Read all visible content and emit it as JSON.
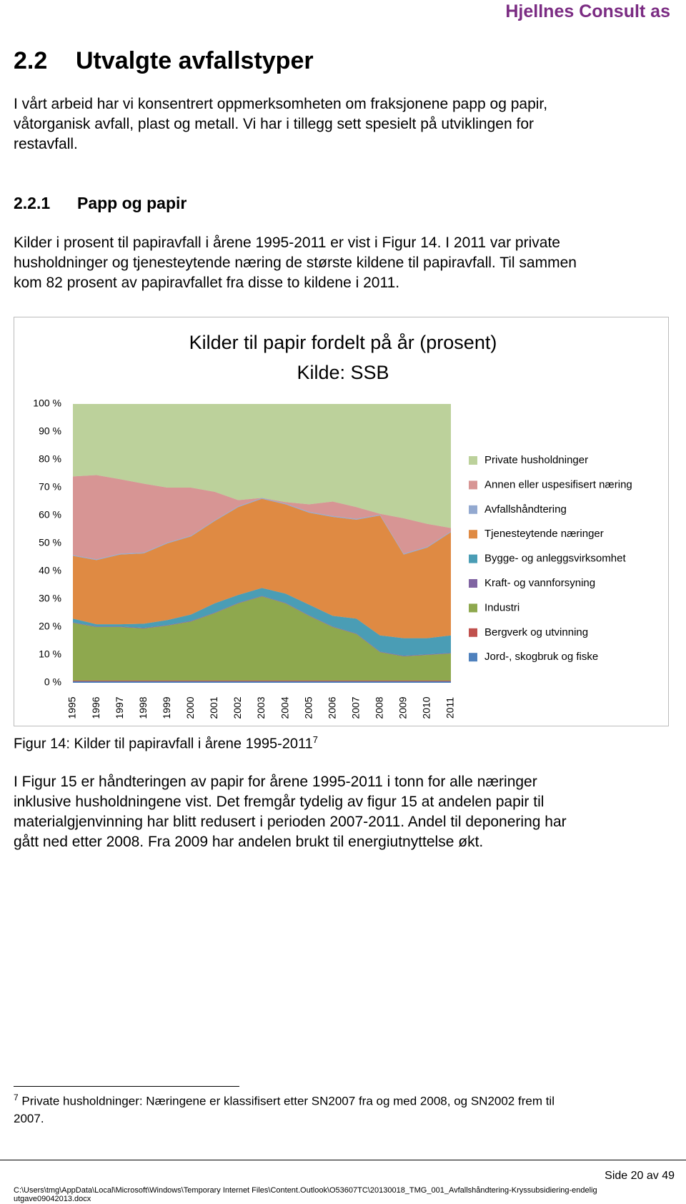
{
  "header": {
    "company": "Hjellnes Consult as"
  },
  "section": {
    "number": "2.2",
    "title": "Utvalgte avfallstyper",
    "paragraph": [
      "I vårt arbeid har vi konsentrert oppmerksomheten om fraksjonene papp og papir,",
      "våtorganisk avfall, plast og metall. Vi har i tillegg sett spesielt på utviklingen for",
      "restavfall."
    ]
  },
  "subsection": {
    "number": "2.2.1",
    "title": "Papp og papir",
    "paragraph": [
      "Kilder i prosent til papiravfall i årene 1995-2011 er vist i Figur 14. I 2011 var private",
      "husholdninger og tjenesteytende næring de største kildene til papiravfall. Til sammen",
      "kom 82 prosent av papiravfallet fra disse to kildene i 2011."
    ]
  },
  "chart_data": {
    "type": "stacked-area",
    "title": [
      "Kilder til papir fordelt på år (prosent)",
      "Kilde: SSB"
    ],
    "categories": [
      "1995",
      "1996",
      "1997",
      "1998",
      "1999",
      "2000",
      "2001",
      "2002",
      "2003",
      "2004",
      "2005",
      "2006",
      "2007",
      "2008",
      "2009",
      "2010",
      "2011"
    ],
    "ylim": [
      0,
      100
    ],
    "yticks": [
      {
        "value": 0,
        "label": "0 %"
      },
      {
        "value": 10,
        "label": "10 %"
      },
      {
        "value": 20,
        "label": "20 %"
      },
      {
        "value": 30,
        "label": "30 %"
      },
      {
        "value": 40,
        "label": "40 %"
      },
      {
        "value": 50,
        "label": "50 %"
      },
      {
        "value": 60,
        "label": "60 %"
      },
      {
        "value": 70,
        "label": "70 %"
      },
      {
        "value": 80,
        "label": "80 %"
      },
      {
        "value": 90,
        "label": "90 %"
      },
      {
        "value": 100,
        "label": "100 %"
      }
    ],
    "series": [
      {
        "name": "Jord-, skogbruk og fiske",
        "color": "#4f81bd",
        "values": [
          0.5,
          0.5,
          0.5,
          0.5,
          0.5,
          0.5,
          0.5,
          0.5,
          0.5,
          0.5,
          0.5,
          0.5,
          0.5,
          0.5,
          0.5,
          0.5,
          0.5
        ]
      },
      {
        "name": "Bergverk og utvinning",
        "color": "#c0504d",
        "values": [
          0.3,
          0.3,
          0.3,
          0.3,
          0.3,
          0.3,
          0.3,
          0.3,
          0.3,
          0.3,
          0.3,
          0.3,
          0.3,
          0.3,
          0.3,
          0.3,
          0.3
        ]
      },
      {
        "name": "Industri",
        "color": "#8ea84e",
        "values": [
          20.7,
          19.2,
          19.2,
          18.7,
          19.7,
          21.2,
          24.2,
          27.7,
          30.2,
          27.7,
          23.2,
          19.2,
          16.7,
          10.2,
          8.7,
          9.2,
          9.7
        ]
      },
      {
        "name": "Kraft- og vannforsyning",
        "color": "#8064a2",
        "values": [
          0.2,
          0.2,
          0.2,
          0.2,
          0.2,
          0.2,
          0.2,
          0.2,
          0.2,
          0.2,
          0.2,
          0.2,
          0.2,
          0.2,
          0.2,
          0.2,
          0.2
        ]
      },
      {
        "name": "Bygge- og anleggsvirksomhet",
        "color": "#4a9db5",
        "values": [
          1.3,
          0.8,
          0.8,
          1.5,
          1.8,
          2.3,
          3.3,
          2.8,
          2.8,
          3.3,
          3.8,
          3.8,
          5.3,
          5.8,
          6.3,
          5.8,
          6.3
        ]
      },
      {
        "name": "Tjenesteytende næringer",
        "color": "#df8a43",
        "values": [
          22.5,
          23,
          25,
          25.2,
          27.5,
          28,
          29.5,
          31.5,
          32,
          32,
          33,
          35.5,
          35.5,
          43,
          30,
          32.5,
          37
        ]
      },
      {
        "name": "Avfallshåndtering",
        "color": "#93a9d0",
        "values": [
          0.3,
          0.3,
          0.3,
          0.3,
          0.3,
          0.3,
          0.3,
          0.3,
          0.3,
          0.3,
          0.3,
          0.3,
          0.3,
          0.3,
          0.3,
          0.3,
          0.3
        ]
      },
      {
        "name": "Annen eller uspesifisert næring",
        "color": "#d79594",
        "values": [
          28.2,
          30.2,
          26.7,
          24.7,
          19.7,
          17.2,
          10.2,
          2.2,
          0,
          0.5,
          2.7,
          5.2,
          4.2,
          0.3,
          12.7,
          8.2,
          1.2
        ]
      },
      {
        "name": "Private husholdninger",
        "color": "#bcd19b",
        "values": [
          26,
          25.5,
          27,
          28.6,
          30,
          30,
          31.5,
          34.5,
          33.7,
          35.2,
          36,
          35,
          37,
          39.4,
          41,
          43,
          44.5
        ]
      }
    ]
  },
  "caption": {
    "text": "Figur 14: Kilder til papiravfall i årene 1995-2011",
    "note_ref": "7"
  },
  "paragraph3": [
    "I Figur 15 er håndteringen av papir for årene 1995-2011 i tonn for alle næringer",
    "inklusive husholdningene vist. Det fremgår tydelig av figur 15 at andelen papir til",
    "materialgjenvinning har blitt redusert i perioden 2007-2011. Andel til deponering har",
    "gått ned etter 2008. Fra 2009 har andelen brukt til energiutnyttelse økt."
  ],
  "footnote": {
    "marker": "7",
    "lines": [
      "Private husholdninger: Næringene er klassifisert etter SN2007 fra og med 2008, og SN2002 frem til",
      "2007."
    ]
  },
  "footer": {
    "page": "Side 20 av 49",
    "path": [
      "C:\\Users\\tmg\\AppData\\Local\\Microsoft\\Windows\\Temporary Internet Files\\Content.Outlook\\O53607TC\\20130018_TMG_001_Avfallshåndtering-Kryssubsidiering-endelig",
      "utgave09042013.docx"
    ]
  }
}
